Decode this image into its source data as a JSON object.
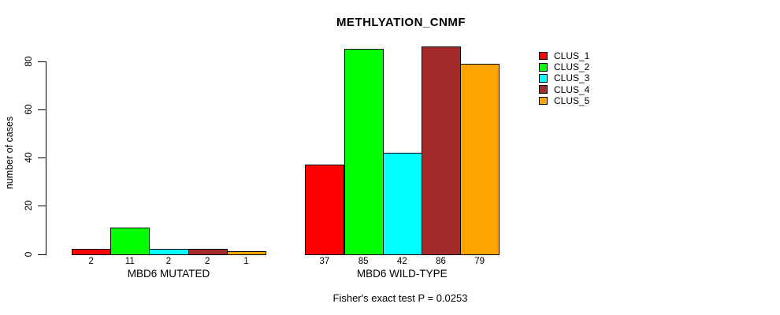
{
  "title": "METHLYATION_CNMF",
  "y_axis_label": "number of cases",
  "caption": "Fisher's exact test P = 0.0253",
  "legend": {
    "entries": [
      {
        "label": "CLUS_1",
        "color": "#FF0000"
      },
      {
        "label": "CLUS_2",
        "color": "#00FF00"
      },
      {
        "label": "CLUS_3",
        "color": "#00FFFF"
      },
      {
        "label": "CLUS_4",
        "color": "#A52A2A"
      },
      {
        "label": "CLUS_5",
        "color": "#FFA500"
      }
    ]
  },
  "chart_data": {
    "type": "bar",
    "title": "METHLYATION_CNMF",
    "ylabel": "number of cases",
    "xlabel": "",
    "yticks": [
      0,
      20,
      40,
      60,
      80
    ],
    "ylim": [
      0,
      88
    ],
    "grid": false,
    "legend_position": "right",
    "series_names": [
      "CLUS_1",
      "CLUS_2",
      "CLUS_3",
      "CLUS_4",
      "CLUS_5"
    ],
    "series_colors": [
      "#FF0000",
      "#00FF00",
      "#00FFFF",
      "#A52A2A",
      "#FFA500"
    ],
    "groups": [
      {
        "label": "MBD6 MUTATED",
        "values": [
          2,
          11,
          2,
          2,
          1
        ]
      },
      {
        "label": "MBD6 WILD-TYPE",
        "values": [
          37,
          85,
          42,
          86,
          79
        ]
      }
    ],
    "bar_value_labels_shown": true,
    "annotation": "Fisher's exact test P = 0.0253"
  }
}
